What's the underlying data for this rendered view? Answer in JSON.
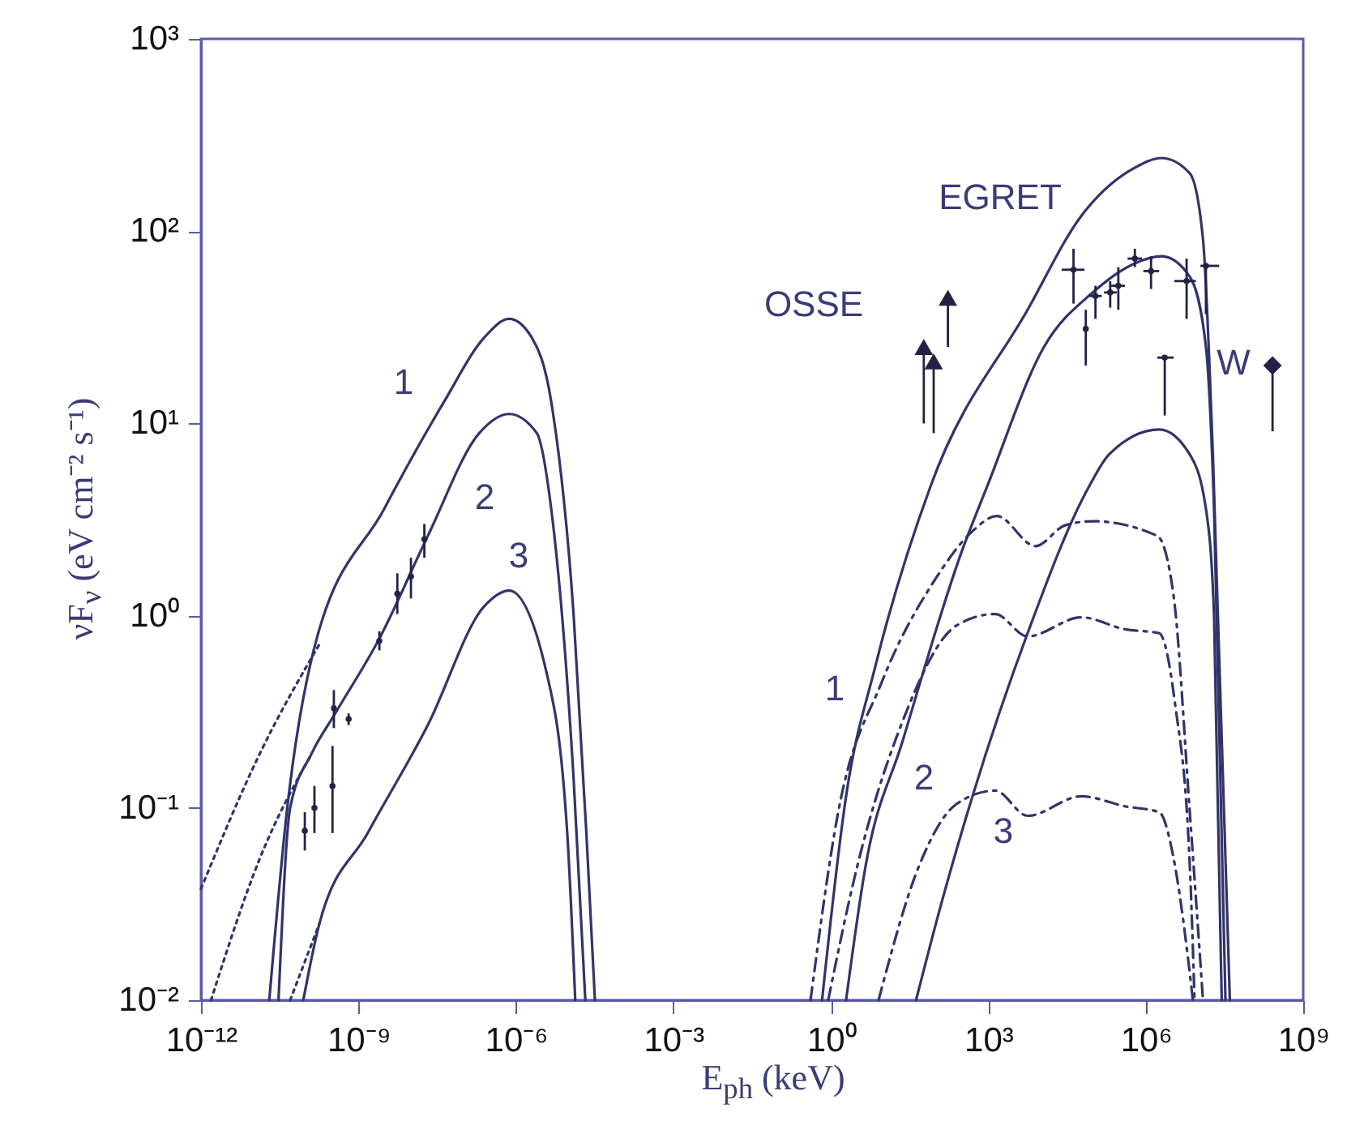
{
  "chart_data": {
    "type": "line",
    "xlabel": "E$_{ph}$ (keV)",
    "ylabel": "νF$_{ν}$ (eV cm⁻² s⁻¹)",
    "log": "xy",
    "grid": false,
    "xlim": [
      1e-12,
      1000000000.0
    ],
    "ylim": [
      0.01,
      1000
    ],
    "xticks": [
      {
        "value": 1e-12,
        "label": "10⁻¹²"
      },
      {
        "value": 1e-09,
        "label": "10⁻⁹"
      },
      {
        "value": 1e-06,
        "label": "10⁻⁶"
      },
      {
        "value": 0.001,
        "label": "10⁻³"
      },
      {
        "value": 1,
        "label": "10⁰"
      },
      {
        "value": 1000,
        "label": "10³"
      },
      {
        "value": 1000000.0,
        "label": "10⁶"
      },
      {
        "value": 1000000000.0,
        "label": "10⁹"
      }
    ],
    "yticks": [
      {
        "value": 0.01,
        "label": "10⁻²"
      },
      {
        "value": 0.1,
        "label": "10⁻¹"
      },
      {
        "value": 1,
        "label": "10⁰"
      },
      {
        "value": 10,
        "label": "10¹"
      },
      {
        "value": 100,
        "label": "10²"
      },
      {
        "value": 1000,
        "label": "10³"
      }
    ],
    "annotations": [
      "1",
      "2",
      "3",
      "EGRET",
      "OSSE",
      "W",
      "1",
      "2",
      "3"
    ],
    "series": [
      {
        "type": "line",
        "color": "#33336b",
        "line_style": "solid",
        "x": [
          2e-11,
          4.4e-11,
          1.4e-10,
          3.1e-09,
          4.3e-08,
          2.5e-07,
          7.4e-07,
          2e-06,
          4.7e-06,
          1.26e-05,
          2.2e-05,
          3.2e-05
        ],
        "values": [
          0.01,
          0.1,
          0.66,
          3.6,
          13,
          28,
          35,
          28,
          13,
          1.0,
          0.074,
          0.01
        ]
      },
      {
        "type": "line",
        "color": "#33336b",
        "line_style": "dotted",
        "x": [
          1e-12,
          1.3e-11,
          1.8e-10
        ],
        "values": [
          0.038,
          0.19,
          0.71
        ]
      },
      {
        "type": "line",
        "color": "#33336b",
        "line_style": "solid",
        "x": [
          3e-11,
          5e-11,
          1.26e-10,
          3.6e-10,
          2.5e-09,
          2.1e-08,
          2e-07,
          7.4e-07,
          2.5e-06,
          4.7e-06,
          1.26e-05,
          2.1e-05
        ],
        "values": [
          0.01,
          0.1,
          0.19,
          0.31,
          0.76,
          2.6,
          8.9,
          11.2,
          8.9,
          3.6,
          0.14,
          0.01
        ]
      },
      {
        "type": "line",
        "color": "#33336b",
        "line_style": "dotted",
        "x": [
          1.55e-12,
          1.3e-11,
          1.26e-10
        ],
        "values": [
          0.01,
          0.054,
          0.19
        ]
      },
      {
        "type": "line",
        "color": "#33336b",
        "line_style": "solid",
        "x": [
          8.9e-11,
          1.8e-10,
          1.5e-09,
          2.1e-08,
          2.5e-07,
          7.4e-07,
          3.8e-06,
          9.5e-06,
          1.35e-05
        ],
        "values": [
          0.01,
          0.025,
          0.074,
          0.27,
          1.12,
          1.35,
          0.51,
          0.074,
          0.01
        ]
      },
      {
        "type": "line",
        "color": "#33336b",
        "line_style": "dotted",
        "x": [
          5e-11,
          1.8e-10
        ],
        "values": [
          0.01,
          0.025
        ]
      },
      {
        "type": "scatter",
        "color": "#222244",
        "x": [
          9.5e-11,
          1.45e-10,
          3.2e-10,
          3.4e-10,
          6.5e-10,
          2.5e-09,
          5.5e-09,
          1e-08,
          1.8e-08
        ],
        "values": [
          0.076,
          0.1,
          0.13,
          0.33,
          0.29,
          0.74,
          1.3,
          1.6,
          2.5
        ],
        "errors": [
          [
            0.06,
            0.095
          ],
          [
            0.074,
            0.13
          ],
          [
            0.074,
            0.21
          ],
          [
            0.26,
            0.41
          ],
          [
            0.27,
            0.31
          ],
          [
            0.66,
            0.83
          ],
          [
            1.02,
            1.66
          ],
          [
            1.23,
            2.0
          ],
          [
            2.0,
            3.0
          ]
        ]
      },
      {
        "type": "line",
        "color": "#33336b",
        "line_style": "solid",
        "x": [
          0.68,
          1.95,
          7.1,
          79,
          5600,
          59000.0,
          620000.0,
          2000000.0,
          6900000.0,
          12300000.0,
          19000000.0,
          40000000.0
        ],
        "values": [
          0.01,
          0.115,
          0.55,
          4.7,
          39,
          120,
          214,
          240,
          200,
          91,
          6.9,
          0.01
        ]
      },
      {
        "type": "line",
        "color": "#33336b",
        "line_style": "solid",
        "x": [
          1.95,
          4.6,
          23,
          320,
          950,
          11500.0,
          98000.0,
          620000.0,
          2000000.0,
          6900000.0,
          14000000.0,
          20000000.0,
          33000000.0
        ],
        "values": [
          0.01,
          0.05,
          0.22,
          2.2,
          4.7,
          25,
          48,
          68,
          74,
          58,
          25,
          3.6,
          0.01
        ]
      },
      {
        "type": "line",
        "color": "#33336b",
        "line_style": "solid",
        "x": [
          42,
          120,
          500,
          5600,
          83000.0,
          200000.0,
          1800000.0,
          6900000.0,
          14000000.0,
          20000000.0,
          28000000.0
        ],
        "values": [
          0.01,
          0.03,
          0.115,
          0.81,
          4.7,
          6.9,
          9.3,
          6.9,
          3.6,
          1.0,
          0.01
        ]
      },
      {
        "type": "line",
        "color": "#33336b",
        "line_style": "dashed",
        "x": [
          0.41,
          1.38,
          9.3,
          98,
          500,
          1450,
          7900,
          29000.0,
          98000.0,
          1660000.0,
          3400000.0,
          6900000.0,
          12300000.0
        ],
        "values": [
          0.01,
          0.095,
          0.45,
          1.55,
          2.75,
          3.3,
          2.3,
          2.95,
          3.1,
          2.6,
          1.26,
          0.095,
          0.01
        ]
      },
      {
        "type": "line",
        "color": "#33336b",
        "line_style": "dashed",
        "x": [
          0.89,
          3.2,
          23,
          250,
          1350,
          5600,
          59000.0,
          400000.0,
          1800000.0,
          3600000.0,
          6900000.0,
          8500000.0
        ],
        "values": [
          0.01,
          0.05,
          0.28,
          0.89,
          1.02,
          0.78,
          0.98,
          0.85,
          0.81,
          0.35,
          0.05,
          0.01
        ]
      },
      {
        "type": "line",
        "color": "#33336b",
        "line_style": "dashed",
        "x": [
          8.1,
          48,
          250,
          1350,
          5600,
          59000.0,
          400000.0,
          1800000.0,
          3600000.0,
          6300000.0,
          7900000.0
        ],
        "values": [
          0.01,
          0.05,
          0.105,
          0.123,
          0.091,
          0.115,
          0.102,
          0.095,
          0.05,
          0.017,
          0.01
        ]
      },
      {
        "type": "scatter",
        "color": "#222244",
        "x": [
          42000.0,
          72000.0,
          110000.0,
          210000.0,
          300000.0,
          620000.0,
          1260000.0,
          6000000.0,
          14000000.0,
          2300000.0
        ],
        "values": [
          63,
          31,
          46,
          48,
          52,
          72,
          62,
          55,
          66,
          22
        ],
        "errors": [
          [
            42,
            81
          ],
          [
            20,
            39
          ],
          [
            35,
            52
          ],
          [
            40,
            55
          ],
          [
            39,
            65
          ],
          [
            65,
            81
          ],
          [
            50,
            74
          ],
          [
            35,
            72
          ],
          [
            37,
            66
          ],
          [
            11,
            22
          ]
        ],
        "xerrors": [
          [
            25000.0,
            68000.0
          ],
          null,
          [
            85000.0,
            145000.0
          ],
          [
            160000.0,
            280000.0
          ],
          [
            220000.0,
            400000.0
          ],
          [
            450000.0,
            850000.0
          ],
          [
            900000.0,
            1800000.0
          ],
          [
            3500000.0,
            9000000.0
          ],
          [
            11000000.0,
            25000000.0
          ],
          [
            1660000.0,
            3400000.0
          ]
        ]
      },
      {
        "type": "scatter",
        "color": "#222244",
        "marker": "triangle",
        "x": [
          170,
          59,
          91
        ],
        "values": [
          45,
          25,
          21
        ],
        "errors": [
          [
            25,
            48
          ],
          [
            10,
            25
          ],
          [
            8.9,
            21
          ]
        ]
      },
      {
        "type": "scatter",
        "color": "#222244",
        "marker": "diamond",
        "x": [
          260000000.0
        ],
        "values": [
          20
        ],
        "errors": [
          [
            9.1,
            20
          ]
        ]
      }
    ]
  }
}
